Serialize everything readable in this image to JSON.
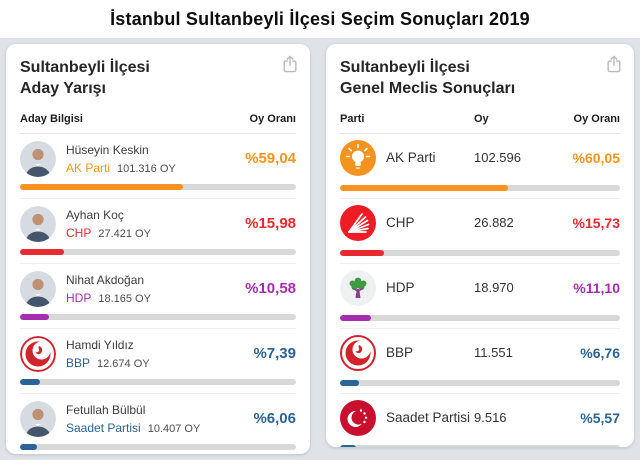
{
  "page_title": "İstanbul Sultanbeyli İlçesi Seçim Sonuçları 2019",
  "colors": {
    "background": "#dfe3e8",
    "card": "#ffffff",
    "bar_track": "#d8d8d8",
    "akparti_orange": "#f7931e",
    "chp_red": "#e8292f",
    "hdp_purple": "#a72db0",
    "bbp_saadet_blue": "#2a6395"
  },
  "left_panel": {
    "title_line1": "Sultanbeyli İlçesi",
    "title_line2": "Aday Yarışı",
    "columns": {
      "candidate": "Aday Bilgisi",
      "share": "Oy Oranı"
    },
    "rows": [
      {
        "name": "Hüseyin Keskin",
        "party": "AK Parti",
        "votes": "101.316 OY",
        "percent_label": "%59,04",
        "percent": 59.04,
        "color": "#f7931e",
        "icon": "candidate-photo"
      },
      {
        "name": "Ayhan Koç",
        "party": "CHP",
        "votes": "27.421 OY",
        "percent_label": "%15,98",
        "percent": 15.98,
        "color": "#e8292f",
        "icon": "candidate-photo"
      },
      {
        "name": "Nihat Akdoğan",
        "party": "HDP",
        "votes": "18.165 OY",
        "percent_label": "%10,58",
        "percent": 10.58,
        "color": "#a72db0",
        "icon": "candidate-photo"
      },
      {
        "name": "Hamdi Yıldız",
        "party": "BBP",
        "votes": "12.674 OY",
        "percent_label": "%7,39",
        "percent": 7.39,
        "color": "#2a6395",
        "icon": "bbp-logo"
      },
      {
        "name": "Fetullah Bülbül",
        "party": "Saadet Partisi",
        "votes": "10.407 OY",
        "percent_label": "%6,06",
        "percent": 6.06,
        "color": "#2a6395",
        "icon": "candidate-photo"
      }
    ]
  },
  "right_panel": {
    "title_line1": "Sultanbeyli İlçesi",
    "title_line2": "Genel Meclis Sonuçları",
    "columns": {
      "party": "Parti",
      "votes": "Oy",
      "share": "Oy Oranı"
    },
    "rows": [
      {
        "party": "AK Parti",
        "votes": "102.596",
        "percent_label": "%60,05",
        "percent": 60.05,
        "color": "#f7931e",
        "icon": "akparti-logo"
      },
      {
        "party": "CHP",
        "votes": "26.882",
        "percent_label": "%15,73",
        "percent": 15.73,
        "color": "#e8292f",
        "icon": "chp-logo"
      },
      {
        "party": "HDP",
        "votes": "18.970",
        "percent_label": "%11,10",
        "percent": 11.1,
        "color": "#a72db0",
        "icon": "hdp-logo"
      },
      {
        "party": "BBP",
        "votes": "11.551",
        "percent_label": "%6,76",
        "percent": 6.76,
        "color": "#2a6395",
        "icon": "bbp-logo"
      },
      {
        "party": "Saadet Partisi",
        "votes": "9.516",
        "percent_label": "%5,57",
        "percent": 5.57,
        "color": "#2a6395",
        "icon": "saadet-logo"
      }
    ]
  },
  "chart_data": [
    {
      "type": "bar",
      "title": "Sultanbeyli İlçesi Aday Yarışı",
      "categories": [
        "Hüseyin Keskin (AK Parti)",
        "Ayhan Koç (CHP)",
        "Nihat Akdoğan (HDP)",
        "Hamdi Yıldız (BBP)",
        "Fetullah Bülbül (Saadet Partisi)"
      ],
      "values": [
        59.04,
        15.98,
        10.58,
        7.39,
        6.06
      ],
      "votes": [
        101316,
        27421,
        18165,
        12674,
        10407
      ],
      "xlabel": "Aday Bilgisi",
      "ylabel": "Oy Oranı (%)",
      "ylim": [
        0,
        100
      ]
    },
    {
      "type": "bar",
      "title": "Sultanbeyli İlçesi Genel Meclis Sonuçları",
      "categories": [
        "AK Parti",
        "CHP",
        "HDP",
        "BBP",
        "Saadet Partisi"
      ],
      "values": [
        60.05,
        15.73,
        11.1,
        6.76,
        5.57
      ],
      "votes": [
        102596,
        26882,
        18970,
        11551,
        9516
      ],
      "xlabel": "Parti",
      "ylabel": "Oy Oranı (%)",
      "ylim": [
        0,
        100
      ]
    }
  ]
}
